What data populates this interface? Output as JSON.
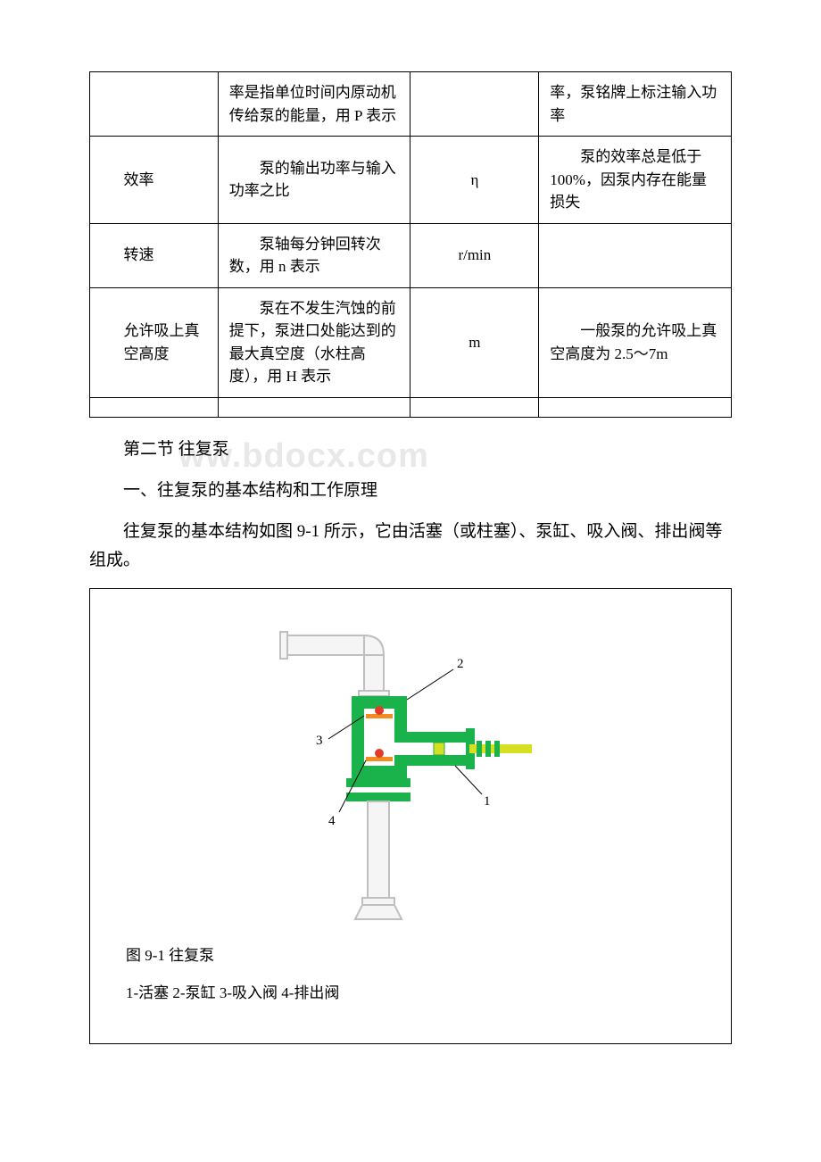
{
  "table": {
    "rows": [
      {
        "name": "",
        "desc": "率是指单位时间内原动机传给泵的能量，用 P 表示",
        "unit": "",
        "note": "率，泵铭牌上标注输入功率"
      },
      {
        "name": "效率",
        "desc": "泵的输出功率与输入功率之比",
        "unit": "η",
        "note": "泵的效率总是低于 100%，因泵内存在能量损失"
      },
      {
        "name": "转速",
        "desc": "泵轴每分钟回转次数，用 n 表示",
        "unit": "r/min",
        "note": ""
      },
      {
        "name": "允许吸上真空高度",
        "desc": "泵在不发生汽蚀的前提下，泵进口处能达到的最大真空度（水柱高度），用 H 表示",
        "unit": "m",
        "note": "一般泵的允许吸上真空高度为 2.5～7m"
      },
      {
        "name": "",
        "desc": "",
        "unit": "",
        "note": ""
      }
    ]
  },
  "watermark": "ww.bdocx.com",
  "section2_title": "第二节 往复泵",
  "section2_heading": "一、往复泵的基本结构和工作原理",
  "section2_body": "往复泵的基本结构如图 9-1 所示，它由活塞（或柱塞）、泵缸、吸入阀、排出阀等组成。",
  "figure": {
    "title": "图 9-1 往复泵",
    "legend": "1-活塞 2-泵缸 3-吸入阀 4-排出阀",
    "labels": {
      "l1": "1",
      "l2": "2",
      "l3": "3",
      "l4": "4"
    },
    "colors": {
      "pipe_stroke": "#bfbfbf",
      "pipe_fill": "#f5f5f5",
      "chamber": "#19b24b",
      "valve_seat": "#f28c1e",
      "valve_ball": "#e13b2a",
      "piston": "#d6df22",
      "callout": "#000000",
      "text": "#000000"
    }
  }
}
